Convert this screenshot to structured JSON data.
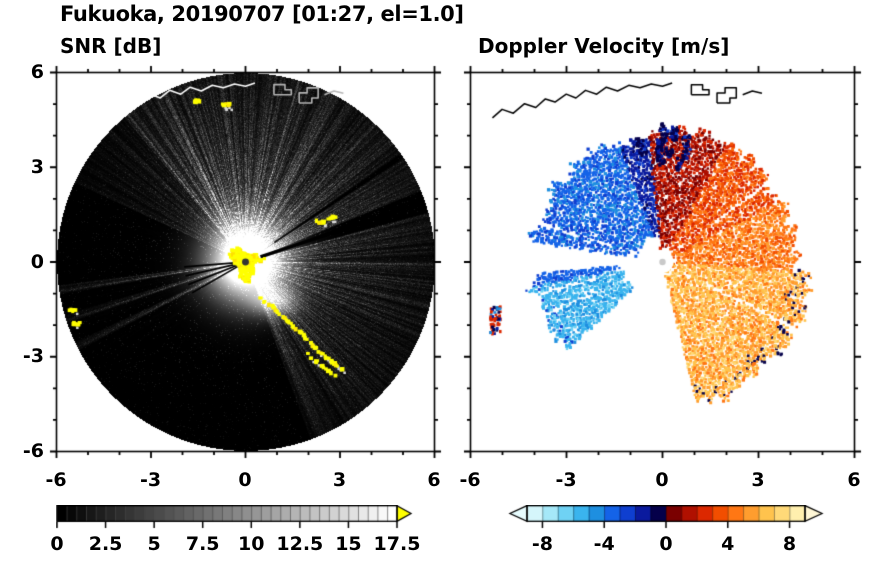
{
  "header": {
    "title": "Fukuoka, 20190707 [01:27, el=1.0]"
  },
  "panels": {
    "snr": {
      "title": "SNR [dB]"
    },
    "velocity": {
      "title": "Doppler Velocity [m/s]"
    }
  },
  "chart_data": [
    {
      "id": "snr",
      "type": "heatmap",
      "title": "SNR [dB]",
      "x_range": [
        -6,
        6
      ],
      "y_range": [
        -6,
        6
      ],
      "x_ticks": [
        -6,
        -3,
        0,
        3,
        6
      ],
      "y_ticks": [
        6,
        3,
        0,
        -3,
        -6
      ],
      "units": "dB",
      "scan_radius": 5.98,
      "colorbar": {
        "min": 0,
        "max": 17.5,
        "cell_step": 0.5,
        "ticks": [
          0,
          2.5,
          5,
          7.5,
          10,
          12.5,
          15,
          17.5
        ],
        "tick_labels": [
          "0",
          "2.5",
          "5",
          "7.5",
          "10",
          "12.5",
          "15",
          "17.5"
        ],
        "gradient": [
          "#000000",
          "#ffffff"
        ],
        "overflow_color": "#ffff00"
      },
      "features": {
        "center_clutter_radius": 0.55,
        "bright_sectors_deg": [
          [
            290,
            350,
            0.5
          ],
          [
            350,
            375,
            0.65
          ],
          [
            22,
            33,
            0.7
          ],
          [
            35,
            55,
            0.75
          ],
          [
            55,
            130,
            0.95
          ],
          [
            130,
            155,
            0.3
          ]
        ],
        "shadow_sectors_deg": [
          [
            15,
            22
          ],
          [
            155,
            186
          ],
          [
            218,
            290
          ]
        ],
        "west_rays_deg": [
          188.5,
          197.5,
          206.5
        ],
        "coast_clutter_arc": [
          [
            0.45,
            -1.15
          ],
          [
            0.8,
            -1.4
          ],
          [
            1.15,
            -1.7
          ],
          [
            1.5,
            -2.0
          ],
          [
            1.85,
            -2.35
          ],
          [
            2.2,
            -2.7
          ],
          [
            2.55,
            -3.0
          ],
          [
            2.8,
            -3.2
          ],
          [
            3.05,
            -3.35
          ]
        ],
        "coast_clutter_arc2": [
          [
            1.95,
            -2.9
          ],
          [
            2.25,
            -3.15
          ],
          [
            2.55,
            -3.4
          ],
          [
            2.85,
            -3.55
          ]
        ],
        "clutter_spots": [
          [
            2.35,
            1.28
          ],
          [
            2.72,
            1.4
          ],
          [
            -5.55,
            -1.5
          ],
          [
            -5.38,
            -1.95
          ],
          [
            -1.5,
            5.08
          ],
          [
            -0.62,
            4.97
          ]
        ]
      }
    },
    {
      "id": "velocity",
      "type": "heatmap",
      "title": "Doppler Velocity [m/s]",
      "x_range": [
        -6,
        6
      ],
      "y_range": [
        -6,
        6
      ],
      "x_ticks": [
        -6,
        -3,
        0,
        3,
        6
      ],
      "y_ticks": [
        6,
        3,
        0,
        -3,
        -6
      ],
      "units": "m/s",
      "colorbar": {
        "min": -9,
        "max": 9,
        "cell_step": 1,
        "ticks": [
          -8,
          -4,
          0,
          4,
          8
        ],
        "tick_labels": [
          "-8",
          "-4",
          "0",
          "4",
          "8"
        ],
        "cell_colors": [
          "#d5f6fb",
          "#a5e8f8",
          "#6fd2f4",
          "#3ab4ee",
          "#1e8fe0",
          "#1463e8",
          "#0f3fd0",
          "#0a1a9e",
          "#05004a",
          "#7a0000",
          "#b01000",
          "#dc2800",
          "#f24e00",
          "#ff7714",
          "#ff9d2e",
          "#ffc34d",
          "#ffd978",
          "#ffefae"
        ],
        "underflow_color": "#e8fdff",
        "overflow_color": "#fff7d6"
      },
      "echo_sectors": [
        {
          "name": "north-blue-fan",
          "angle_deg": [
            96,
            171
          ],
          "radius": [
            0.85,
            4.05
          ],
          "velocity_mps": [
            -4.5,
            -0.8
          ]
        },
        {
          "name": "north-navy-clumps",
          "angle_deg": [
            78,
            104
          ],
          "radius": [
            3.1,
            4.55
          ],
          "velocity_mps": [
            -2.6,
            -0.4
          ]
        },
        {
          "name": "east-red-fan",
          "angle_deg": [
            -4,
            96
          ],
          "radius": [
            0.35,
            4.15
          ],
          "velocity_mps": [
            0.2,
            5.8
          ]
        },
        {
          "name": "southeast-yellow-fan",
          "angle_deg": [
            -76,
            -4
          ],
          "radius": [
            0.35,
            4.55
          ],
          "velocity_mps": [
            4.6,
            7.4
          ]
        },
        {
          "name": "southwest-cyan-fan",
          "angle_deg": [
            186,
            223
          ],
          "radius": [
            1.25,
            4.05
          ],
          "velocity_mps": [
            -6.2,
            -2.6
          ]
        },
        {
          "name": "west-isolated-patch",
          "center": [
            -5.25,
            -1.8
          ],
          "velocity_mps": [
            -4.8,
            2.6
          ]
        }
      ],
      "clear_gaps_deg": [
        37.5,
        162.5,
        194.5,
        204.5,
        -27
      ]
    }
  ],
  "coastline": {
    "color_on_snr": "#ffffff",
    "color_on_velocity": "#000000",
    "main": [
      [
        -5.3,
        4.55
      ],
      [
        -5.0,
        4.82
      ],
      [
        -4.65,
        4.7
      ],
      [
        -4.3,
        5.0
      ],
      [
        -3.95,
        4.88
      ],
      [
        -3.65,
        5.15
      ],
      [
        -3.35,
        5.05
      ],
      [
        -3.0,
        5.3
      ],
      [
        -2.7,
        5.18
      ],
      [
        -2.4,
        5.42
      ],
      [
        -2.05,
        5.3
      ],
      [
        -1.75,
        5.52
      ],
      [
        -1.4,
        5.4
      ],
      [
        -1.05,
        5.58
      ],
      [
        -0.7,
        5.5
      ],
      [
        -0.35,
        5.62
      ],
      [
        0.0,
        5.55
      ],
      [
        0.3,
        5.65
      ]
    ],
    "piers": [
      [
        [
          0.9,
          5.28
        ],
        [
          0.9,
          5.6
        ],
        [
          1.25,
          5.6
        ],
        [
          1.25,
          5.44
        ],
        [
          1.45,
          5.44
        ],
        [
          1.45,
          5.28
        ],
        [
          0.9,
          5.28
        ]
      ],
      [
        [
          1.7,
          5.02
        ],
        [
          1.7,
          5.34
        ],
        [
          1.95,
          5.34
        ],
        [
          1.95,
          5.5
        ],
        [
          2.3,
          5.5
        ],
        [
          2.3,
          5.18
        ],
        [
          2.1,
          5.18
        ],
        [
          2.1,
          5.02
        ],
        [
          1.7,
          5.02
        ]
      ]
    ],
    "east_segment": [
      [
        2.5,
        5.28
      ],
      [
        2.8,
        5.4
      ],
      [
        3.1,
        5.33
      ]
    ]
  }
}
